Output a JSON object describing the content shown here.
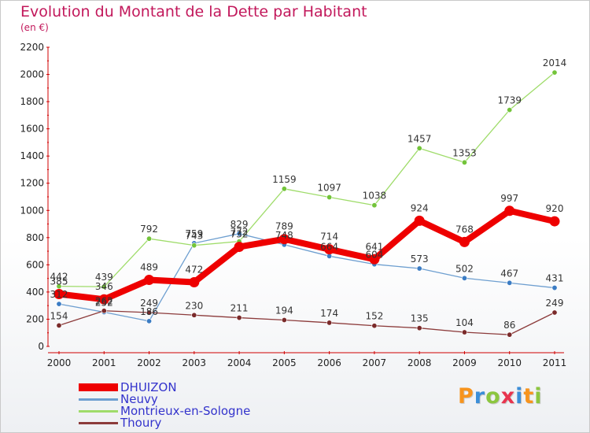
{
  "title": "Evolution du Montant de la Dette par Habitant",
  "subtitle": "(en €)",
  "brand": {
    "text": "Proxiti",
    "letters": [
      "P",
      "r",
      "o",
      "x",
      "i",
      "t",
      "i"
    ],
    "colors": [
      "#f7941d",
      "#3b8ed8",
      "#8cc63f",
      "#e8344e",
      "#3b8ed8",
      "#f7941d",
      "#8cc63f"
    ]
  },
  "chart_data": {
    "type": "line",
    "title": "Evolution du Montant de la Dette par Habitant",
    "subtitle": "(en €)",
    "xlabel": "",
    "ylabel": "",
    "x": [
      "2000",
      "2001",
      "2002",
      "2003",
      "2004",
      "2005",
      "2006",
      "2007",
      "2008",
      "2009",
      "2010",
      "2011"
    ],
    "ylim": [
      0,
      2200
    ],
    "yticks": [
      0,
      200,
      400,
      600,
      800,
      1000,
      1200,
      1400,
      1600,
      1800,
      2000,
      2200
    ],
    "grid": false,
    "legend": "bottom-left",
    "series": [
      {
        "name": "DHUIZON",
        "color": "#ee0000",
        "line_color": "#ee0000",
        "marker_color": "#ee0000",
        "width": 8,
        "values": [
          385,
          346,
          489,
          472,
          732,
          789,
          714,
          641,
          924,
          768,
          997,
          920
        ]
      },
      {
        "name": "Neuvy",
        "color": "#6e9fd0",
        "line_color": "#6e9fd0",
        "marker_color": "#3b7cc4",
        "width": 1.3,
        "values": [
          312,
          252,
          186,
          759,
          829,
          748,
          664,
          604,
          573,
          502,
          467,
          431
        ]
      },
      {
        "name": "Montrieux-en-Sologne",
        "color": "#9fdc6a",
        "line_color": "#9fdc6a",
        "marker_color": "#73c43a",
        "width": 1.3,
        "values": [
          442,
          439,
          792,
          743,
          772,
          1159,
          1097,
          1038,
          1457,
          1353,
          1739,
          2014
        ]
      },
      {
        "name": "Thoury",
        "color": "#8c3b3b",
        "line_color": "#8c3b3b",
        "marker_color": "#7a2a2a",
        "width": 1.3,
        "values": [
          154,
          262,
          249,
          230,
          211,
          194,
          174,
          152,
          135,
          104,
          86,
          249
        ]
      }
    ]
  }
}
